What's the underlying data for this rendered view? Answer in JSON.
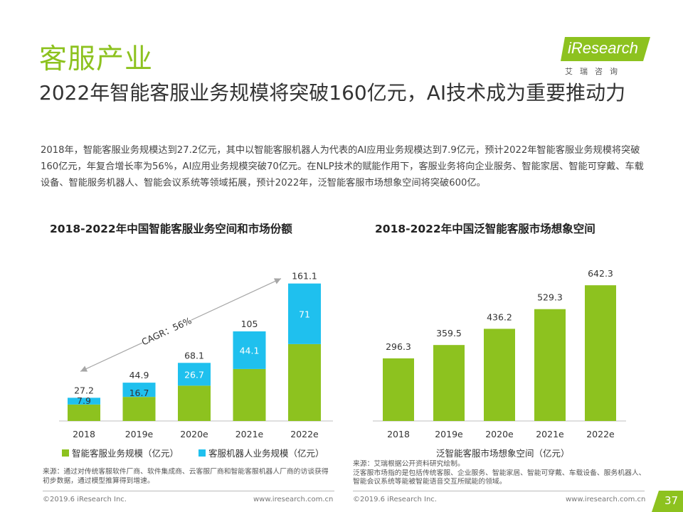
{
  "header": {
    "section": "客服产业",
    "title": "2022年智能客服业务规模将突破160亿元，AI技术成为重要推动力",
    "intro": "2018年，智能客服业务规模达到27.2亿元，其中以智能客服机器人为代表的AI应用业务规模达到7.9亿元，预计2022年智能客服业务规模将突破160亿元，年复合增长率为56%，AI应用业务规模突破70亿元。在NLP技术的赋能作用下，客服业务将向企业服务、智能家居、智能可穿戴、车载设备、智能服务机器人、智能会议系统等领域拓展，预计2022年，泛智能客服市场想象空间将突破600亿。"
  },
  "logo": {
    "text": "iResearch",
    "sub": "艾瑞咨询"
  },
  "colors": {
    "green": "#8DC21F",
    "blue": "#1FC0EE",
    "text": "#333333"
  },
  "chart_data": [
    {
      "type": "bar",
      "stacked": true,
      "title": "2018-2022年中国智能客服业务空间和市场份额",
      "categories": [
        "2018",
        "2019e",
        "2020e",
        "2021e",
        "2022e"
      ],
      "totals": [
        "27.2",
        "44.9",
        "68.1",
        "105",
        "161.1"
      ],
      "series": [
        {
          "name": "智能客服业务规模（亿元）",
          "color": "#8DC21F",
          "values": [
            19.3,
            28.2,
            41.4,
            60.9,
            90.1
          ]
        },
        {
          "name": "客服机器人业务规模（亿元）",
          "color": "#1FC0EE",
          "values": [
            7.9,
            16.7,
            26.7,
            44.1,
            71
          ],
          "labels": [
            "7.9",
            "16.7",
            "26.7",
            "44.1",
            "71"
          ]
        }
      ],
      "annotation": "CAGR：56%",
      "ylim": [
        0,
        175
      ],
      "legend": "bottom",
      "grid": false
    },
    {
      "type": "bar",
      "title": "2018-2022年中国泛智能客服市场想象空间",
      "categories": [
        "2018",
        "2019e",
        "2020e",
        "2021e",
        "2022e"
      ],
      "values": [
        296.3,
        359.5,
        436.2,
        529.3,
        642.3
      ],
      "labels": [
        "296.3",
        "359.5",
        "436.2",
        "529.3",
        "642.3"
      ],
      "series_name": "泛智能客服市场想象空间（亿元）",
      "color": "#8DC21F",
      "ylim": [
        0,
        700
      ],
      "grid": false
    }
  ],
  "sources": {
    "left": "来源：通过对传统客服软件厂商、软件集成商、云客服厂商和智能客服机器人厂商的访谈获得初步数据，通过模型推算得到增速。",
    "right_line1": "来源：艾瑞根据公开资料研究绘制。",
    "right_line2": "泛客服市场指的是包括传统客服、企业服务、智能家居、智能可穿戴、车载设备、服务机器人、智能会议系统等能被智能语音交互所赋能的领域。"
  },
  "footer": {
    "copyright": "©2019.6 iResearch Inc.",
    "url": "www.iresearch.com.cn",
    "page": "37"
  }
}
